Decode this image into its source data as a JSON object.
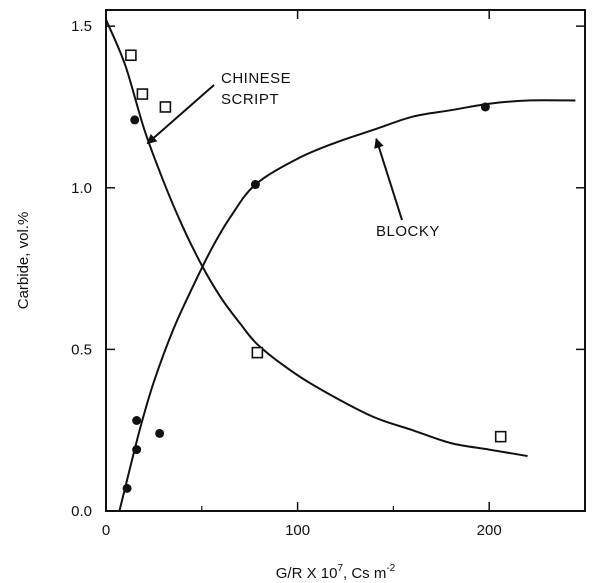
{
  "chart_data": {
    "type": "scatter",
    "xlabel": "G/R X 10",
    "xlabel_sup": "7",
    "xlabel_units": ", Cs m",
    "xlabel_units_sup": "-2",
    "ylabel": "Carbide, vol.%",
    "xlim": [
      0,
      250
    ],
    "ylim": [
      0,
      1.55
    ],
    "x_ticks": [
      "0",
      "100",
      "200"
    ],
    "y_ticks": [
      "0.0",
      "0.5",
      "1.0",
      "1.5"
    ],
    "x_tick_values": [
      0,
      100,
      200
    ],
    "y_tick_values": [
      0.0,
      0.5,
      1.0,
      1.5
    ],
    "grid": false,
    "series": [
      {
        "name": "CHINESE SCRIPT",
        "marker": "open-square",
        "points": [
          {
            "x": 13,
            "y": 1.41
          },
          {
            "x": 19,
            "y": 1.29
          },
          {
            "x": 31,
            "y": 1.25
          },
          {
            "x": 79,
            "y": 0.49
          },
          {
            "x": 206,
            "y": 0.23
          }
        ],
        "curve": [
          {
            "x": 0,
            "y": 1.52
          },
          {
            "x": 10,
            "y": 1.38
          },
          {
            "x": 20,
            "y": 1.18
          },
          {
            "x": 30,
            "y": 1.02
          },
          {
            "x": 40,
            "y": 0.88
          },
          {
            "x": 50,
            "y": 0.76
          },
          {
            "x": 60,
            "y": 0.66
          },
          {
            "x": 70,
            "y": 0.58
          },
          {
            "x": 80,
            "y": 0.51
          },
          {
            "x": 100,
            "y": 0.42
          },
          {
            "x": 120,
            "y": 0.35
          },
          {
            "x": 140,
            "y": 0.29
          },
          {
            "x": 160,
            "y": 0.25
          },
          {
            "x": 180,
            "y": 0.21
          },
          {
            "x": 200,
            "y": 0.19
          },
          {
            "x": 220,
            "y": 0.17
          }
        ]
      },
      {
        "name": "BLOCKY",
        "marker": "filled-circle",
        "points": [
          {
            "x": 15,
            "y": 1.21
          },
          {
            "x": 11,
            "y": 0.07
          },
          {
            "x": 16,
            "y": 0.19
          },
          {
            "x": 16,
            "y": 0.28
          },
          {
            "x": 28,
            "y": 0.24
          },
          {
            "x": 78,
            "y": 1.01
          },
          {
            "x": 198,
            "y": 1.25
          }
        ],
        "curve": [
          {
            "x": 7,
            "y": 0.0
          },
          {
            "x": 12,
            "y": 0.12
          },
          {
            "x": 18,
            "y": 0.26
          },
          {
            "x": 25,
            "y": 0.4
          },
          {
            "x": 35,
            "y": 0.56
          },
          {
            "x": 45,
            "y": 0.69
          },
          {
            "x": 55,
            "y": 0.81
          },
          {
            "x": 65,
            "y": 0.91
          },
          {
            "x": 78,
            "y": 1.01
          },
          {
            "x": 100,
            "y": 1.09
          },
          {
            "x": 120,
            "y": 1.14
          },
          {
            "x": 140,
            "y": 1.18
          },
          {
            "x": 160,
            "y": 1.22
          },
          {
            "x": 180,
            "y": 1.24
          },
          {
            "x": 200,
            "y": 1.26
          },
          {
            "x": 220,
            "y": 1.27
          },
          {
            "x": 245,
            "y": 1.27
          }
        ]
      }
    ],
    "annotations": [
      {
        "text_lines": [
          "CHINESE",
          "SCRIPT"
        ],
        "points_to": {
          "x": 20,
          "y": 1.14
        }
      },
      {
        "text_lines": [
          "BLOCKY"
        ],
        "points_to": {
          "x": 140,
          "y": 1.17
        }
      }
    ]
  }
}
